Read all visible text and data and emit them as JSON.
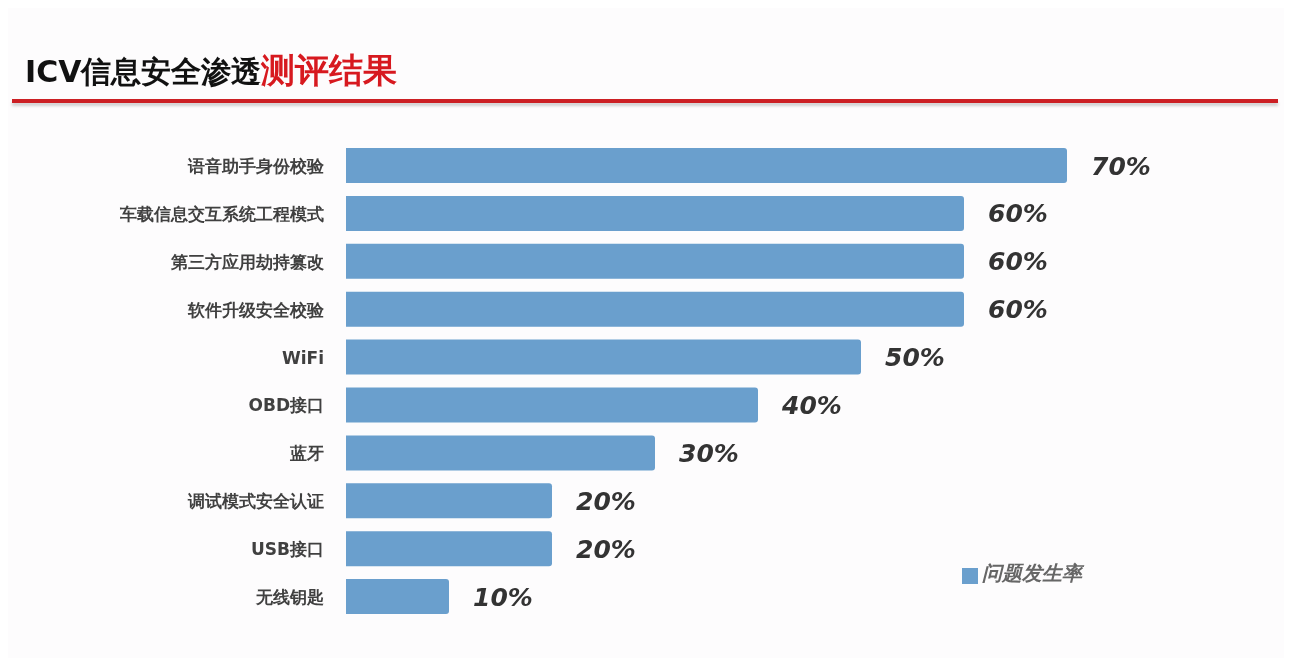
{
  "chart_data": {
    "type": "bar",
    "orientation": "horizontal",
    "title": "ICV信息安全渗透测评结果",
    "categories": [
      "语音助手身份校验",
      "车载信息交互系统工程模式",
      "第三方应用劫持篡改",
      "软件升级安全校验",
      "WiFi",
      "OBD接口",
      "蓝牙",
      "调试模式安全认证",
      "USB接口",
      "无线钥匙"
    ],
    "series": [
      {
        "name": "问题发生率",
        "color": "#6a9fcd",
        "values": [
          70,
          60,
          60,
          60,
          50,
          40,
          30,
          20,
          20,
          10
        ],
        "value_labels": [
          "70%",
          "60%",
          "60%",
          "60%",
          "50%",
          "40%",
          "30%",
          "20%",
          "20%",
          "10%"
        ]
      }
    ],
    "legend": "bottom right"
  }
}
